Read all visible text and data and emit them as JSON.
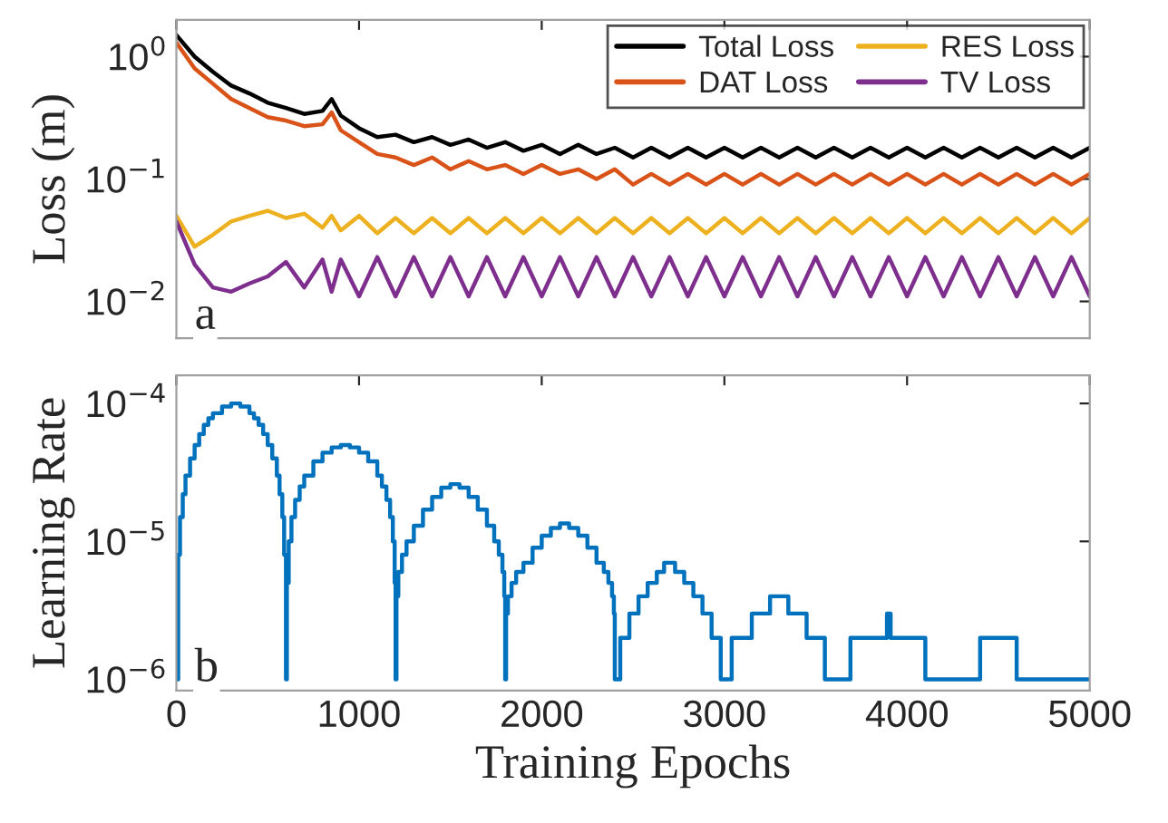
{
  "chart_data": [
    {
      "type": "line",
      "ylabel": "Loss (m)",
      "log": true,
      "xlim": [
        0,
        5000
      ],
      "xticks": [
        0,
        1000,
        2000,
        3000,
        4000,
        5000
      ],
      "ylim": [
        0.005,
        2
      ],
      "yticks": [
        {
          "value": 0.01,
          "label": "10$^{−2}$"
        },
        {
          "value": 0.1,
          "label": "10$^{−1}$"
        },
        {
          "value": 1,
          "label": "10$^{0}$"
        }
      ],
      "tick_labels": "y",
      "legend": "top right",
      "grid": false,
      "annotations": [
        "a"
      ],
      "x": [
        0,
        100,
        200,
        300,
        400,
        500,
        600,
        700,
        800,
        850,
        900,
        1000,
        1100,
        1200,
        1300,
        1400,
        1500,
        1600,
        1700,
        1800,
        1900,
        2000,
        2100,
        2200,
        2300,
        2400,
        2500,
        2600,
        2700,
        2800,
        2900,
        3000,
        3100,
        3200,
        3300,
        3400,
        3500,
        3600,
        3700,
        3800,
        3900,
        4000,
        4100,
        4200,
        4300,
        4400,
        4500,
        4600,
        4700,
        4800,
        4900,
        5000
      ],
      "series": [
        {
          "name": "Total Loss",
          "color": "#000000",
          "values": [
            1.5,
            1.0,
            0.75,
            0.58,
            0.5,
            0.42,
            0.38,
            0.34,
            0.36,
            0.45,
            0.33,
            0.26,
            0.22,
            0.23,
            0.2,
            0.22,
            0.19,
            0.21,
            0.18,
            0.2,
            0.17,
            0.19,
            0.16,
            0.19,
            0.16,
            0.18,
            0.15,
            0.18,
            0.15,
            0.18,
            0.15,
            0.18,
            0.15,
            0.18,
            0.15,
            0.18,
            0.15,
            0.18,
            0.15,
            0.18,
            0.15,
            0.18,
            0.15,
            0.18,
            0.15,
            0.18,
            0.15,
            0.18,
            0.15,
            0.18,
            0.15,
            0.18
          ]
        },
        {
          "name": "DAT Loss",
          "color": "#d95319",
          "values": [
            1.3,
            0.8,
            0.6,
            0.45,
            0.38,
            0.32,
            0.3,
            0.27,
            0.28,
            0.35,
            0.25,
            0.2,
            0.16,
            0.15,
            0.13,
            0.15,
            0.12,
            0.14,
            0.12,
            0.13,
            0.11,
            0.13,
            0.11,
            0.12,
            0.1,
            0.12,
            0.09,
            0.11,
            0.09,
            0.11,
            0.09,
            0.11,
            0.09,
            0.11,
            0.09,
            0.11,
            0.09,
            0.11,
            0.09,
            0.11,
            0.09,
            0.11,
            0.09,
            0.11,
            0.09,
            0.11,
            0.09,
            0.11,
            0.09,
            0.11,
            0.09,
            0.11
          ]
        },
        {
          "name": "RES Loss",
          "color": "#edb120",
          "values": [
            0.05,
            0.028,
            0.035,
            0.045,
            0.05,
            0.055,
            0.048,
            0.052,
            0.04,
            0.05,
            0.038,
            0.05,
            0.036,
            0.048,
            0.036,
            0.048,
            0.036,
            0.048,
            0.036,
            0.048,
            0.036,
            0.048,
            0.036,
            0.048,
            0.036,
            0.048,
            0.036,
            0.048,
            0.036,
            0.048,
            0.036,
            0.048,
            0.036,
            0.048,
            0.036,
            0.048,
            0.036,
            0.048,
            0.036,
            0.048,
            0.036,
            0.048,
            0.036,
            0.048,
            0.036,
            0.048,
            0.036,
            0.048,
            0.036,
            0.048,
            0.036,
            0.048
          ]
        },
        {
          "name": "TV Loss",
          "color": "#7e2f8e",
          "values": [
            0.045,
            0.02,
            0.013,
            0.012,
            0.014,
            0.016,
            0.021,
            0.013,
            0.022,
            0.012,
            0.022,
            0.011,
            0.023,
            0.011,
            0.023,
            0.011,
            0.023,
            0.011,
            0.023,
            0.011,
            0.023,
            0.011,
            0.023,
            0.011,
            0.023,
            0.011,
            0.023,
            0.011,
            0.023,
            0.011,
            0.023,
            0.011,
            0.023,
            0.011,
            0.023,
            0.011,
            0.023,
            0.011,
            0.023,
            0.011,
            0.023,
            0.011,
            0.023,
            0.011,
            0.023,
            0.011,
            0.023,
            0.011,
            0.023,
            0.011,
            0.023,
            0.011
          ]
        }
      ]
    },
    {
      "type": "step",
      "xlabel": "Training Epochs",
      "ylabel": "Learning Rate",
      "log": true,
      "xlim": [
        0,
        5000
      ],
      "xticks": [
        0,
        1000,
        2000,
        3000,
        4000,
        5000
      ],
      "ylim": [
        8.3e-07,
        0.00016
      ],
      "yticks": [
        {
          "value": 1e-06,
          "label": "10$^{−6}$"
        },
        {
          "value": 1e-05,
          "label": "10$^{−5}$"
        },
        {
          "value": 0.0001,
          "label": "10$^{−4}$"
        }
      ],
      "grid": false,
      "annotations": [
        "b"
      ],
      "series": [
        {
          "color": "#0072bd",
          "x": [
            0,
            10,
            20,
            35,
            50,
            75,
            100,
            125,
            150,
            175,
            200,
            250,
            300,
            350,
            400,
            425,
            450,
            475,
            500,
            525,
            550,
            565,
            580,
            590,
            600,
            605,
            615,
            630,
            650,
            675,
            700,
            750,
            800,
            850,
            900,
            950,
            1000,
            1050,
            1100,
            1125,
            1150,
            1170,
            1185,
            1195,
            1200,
            1205,
            1215,
            1235,
            1260,
            1300,
            1350,
            1400,
            1450,
            1500,
            1550,
            1600,
            1650,
            1700,
            1740,
            1765,
            1785,
            1795,
            1800,
            1805,
            1815,
            1835,
            1860,
            1900,
            1950,
            2000,
            2050,
            2100,
            2150,
            2200,
            2250,
            2300,
            2340,
            2365,
            2385,
            2395,
            2400,
            2430,
            2480,
            2530,
            2580,
            2630,
            2670,
            2730,
            2780,
            2830,
            2880,
            2930,
            2980,
            3040,
            3150,
            3250,
            3350,
            3450,
            3550,
            3690,
            3890,
            3910,
            4100,
            4400,
            4600,
            5000
          ],
          "values": [
            1e-06,
            8e-06,
            1.5e-05,
            2.2e-05,
            3e-05,
            4e-05,
            5e-05,
            6e-05,
            7e-05,
            7.8e-05,
            8.5e-05,
            9.5e-05,
            0.0001,
            9.5e-05,
            8.5e-05,
            7.8e-05,
            7e-05,
            6e-05,
            5e-05,
            4e-05,
            3e-05,
            2.2e-05,
            1.5e-05,
            8e-06,
            1e-06,
            5e-06,
            1e-05,
            1.5e-05,
            2e-05,
            2.5e-05,
            3e-05,
            3.8e-05,
            4.4e-05,
            4.8e-05,
            5e-05,
            4.8e-05,
            4.4e-05,
            3.8e-05,
            3e-05,
            2.5e-05,
            2e-05,
            1.5e-05,
            1e-05,
            5e-06,
            1e-06,
            4e-06,
            6e-06,
            8e-06,
            1e-05,
            1.3e-05,
            1.7e-05,
            2.1e-05,
            2.45e-05,
            2.6e-05,
            2.45e-05,
            2.1e-05,
            1.7e-05,
            1.3e-05,
            1e-05,
            8e-06,
            6e-06,
            4e-06,
            1e-06,
            3e-06,
            4e-06,
            5e-06,
            6e-06,
            7e-06,
            9e-06,
            1.1e-05,
            1.25e-05,
            1.35e-05,
            1.25e-05,
            1.1e-05,
            9e-06,
            7e-06,
            6e-06,
            5e-06,
            4e-06,
            3e-06,
            1e-06,
            2e-06,
            3e-06,
            4e-06,
            5e-06,
            6e-06,
            7e-06,
            6e-06,
            5e-06,
            4e-06,
            3e-06,
            2e-06,
            1e-06,
            2e-06,
            3e-06,
            4e-06,
            3e-06,
            2e-06,
            1e-06,
            2e-06,
            3e-06,
            2e-06,
            1e-06,
            2e-06,
            1e-06,
            1e-06
          ]
        }
      ]
    }
  ]
}
